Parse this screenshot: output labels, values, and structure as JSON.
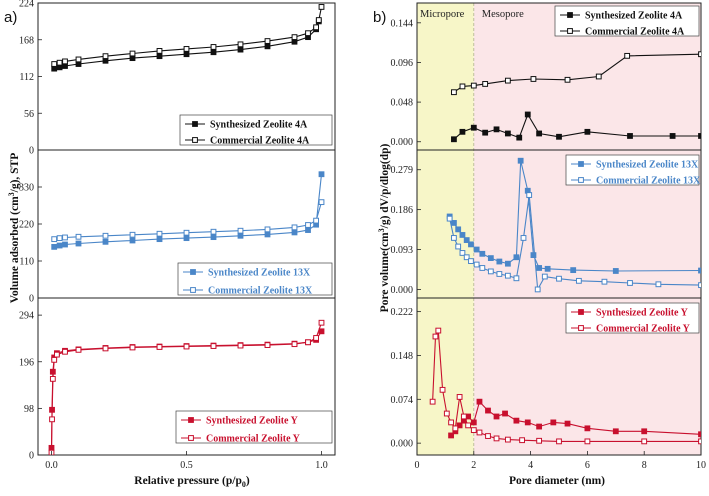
{
  "panel_labels": {
    "a": "a)",
    "b": "b)"
  },
  "colors": {
    "black": "#111111",
    "blue": "#4a86c8",
    "red": "#c8102e",
    "micro_bg": "#f7f6c8",
    "meso_bg": "#fbe6e8"
  },
  "chart_data": [
    {
      "type": "line",
      "panel": "a",
      "xlabel": "Relative pressure (p/p0)",
      "xlabel_main": "Relative pressure (p/p",
      "xlabel_sub": "0",
      "xlabel_end": ")",
      "ylabel": "Volume adsorbed (cm3/g), STP",
      "ylabel_main": "Volume adsorbed (cm",
      "ylabel_sup": "3",
      "ylabel_end": "/g), STP",
      "xlim": [
        -0.05,
        1.05
      ],
      "xticks": [
        0.0,
        0.5,
        1.0
      ],
      "xtick_labels": [
        "0.0",
        "0.5",
        "1.0"
      ],
      "subplots": [
        {
          "name": "4A",
          "ylim": [
            0,
            224
          ],
          "yticks": [
            0,
            56,
            112,
            168,
            224
          ],
          "ytick_labels": [
            "0",
            "56",
            "112",
            "168",
            "224"
          ],
          "color": "#111111",
          "series": [
            {
              "name": "Synthesized Zeolite 4A",
              "marker": "filled",
              "x": [
                0.01,
                0.03,
                0.05,
                0.1,
                0.2,
                0.3,
                0.4,
                0.5,
                0.6,
                0.7,
                0.8,
                0.9,
                0.95,
                0.98,
                0.99
              ],
              "y": [
                124,
                126,
                128,
                131,
                136,
                140,
                143,
                146,
                149,
                153,
                158,
                165,
                172,
                184,
                196
              ]
            },
            {
              "name": "Commercial Zeolite 4A",
              "marker": "open",
              "x": [
                0.01,
                0.03,
                0.05,
                0.1,
                0.2,
                0.3,
                0.4,
                0.5,
                0.6,
                0.7,
                0.8,
                0.9,
                0.95,
                0.98,
                0.99,
                1.0
              ],
              "y": [
                131,
                133,
                135,
                138,
                143,
                147,
                151,
                154,
                157,
                161,
                166,
                172,
                178,
                187,
                198,
                218
              ]
            }
          ]
        },
        {
          "name": "13X",
          "ylim": [
            0,
            440
          ],
          "yticks": [
            0,
            110,
            220,
            330
          ],
          "ytick_labels": [
            "0",
            "110",
            "220",
            "330"
          ],
          "color": "#4a86c8",
          "series": [
            {
              "name": "Synthesized Zeolite 13X",
              "marker": "filled",
              "x": [
                0.01,
                0.03,
                0.05,
                0.1,
                0.2,
                0.3,
                0.4,
                0.5,
                0.6,
                0.7,
                0.8,
                0.9,
                0.95,
                0.98,
                1.0
              ],
              "y": [
                152,
                156,
                159,
                162,
                167,
                171,
                175,
                178,
                181,
                185,
                189,
                195,
                202,
                218,
                368
              ]
            },
            {
              "name": "Commercial Zeolite 13X",
              "marker": "open",
              "x": [
                0.01,
                0.03,
                0.05,
                0.1,
                0.2,
                0.3,
                0.4,
                0.5,
                0.6,
                0.7,
                0.8,
                0.9,
                0.95,
                0.98,
                1.0
              ],
              "y": [
                175,
                178,
                180,
                182,
                185,
                188,
                191,
                194,
                197,
                200,
                204,
                210,
                217,
                230,
                285
              ]
            }
          ]
        },
        {
          "name": "Y",
          "ylim": [
            0,
            330
          ],
          "yticks": [
            0,
            98,
            196,
            294
          ],
          "ytick_labels": [
            "0",
            "98",
            "196",
            "294"
          ],
          "color": "#c8102e",
          "series": [
            {
              "name": "Synthesized Zeolite Y",
              "marker": "filled",
              "x": [
                0.0,
                0.002,
                0.005,
                0.01,
                0.02,
                0.05,
                0.1,
                0.2,
                0.3,
                0.4,
                0.5,
                0.6,
                0.7,
                0.8,
                0.9,
                0.95,
                0.98,
                1.0
              ],
              "y": [
                15,
                95,
                175,
                205,
                214,
                219,
                222,
                225,
                227,
                228,
                229,
                230,
                231,
                232,
                234,
                237,
                242,
                260
              ]
            },
            {
              "name": "Commercial Zeolite Y",
              "marker": "open",
              "x": [
                0.0,
                0.002,
                0.005,
                0.01,
                0.02,
                0.05,
                0.1,
                0.2,
                0.3,
                0.4,
                0.5,
                0.6,
                0.7,
                0.8,
                0.9,
                0.95,
                0.98,
                1.0
              ],
              "y": [
                5,
                75,
                160,
                200,
                211,
                217,
                221,
                224,
                226,
                227,
                228,
                229,
                230,
                231,
                233,
                237,
                246,
                278
              ]
            }
          ]
        }
      ]
    },
    {
      "type": "line",
      "panel": "b",
      "xlabel": "Pore diameter (nm)",
      "ylabel": "Pore volume(cm3/g) dV/p/dlog(dp)",
      "ylabel_main": "Pore volume(cm",
      "ylabel_sup": "3",
      "ylabel_end": "/g) dV/p/dlog(dp)",
      "xlim": [
        0,
        10
      ],
      "xticks": [
        0,
        2,
        4,
        6,
        8,
        10
      ],
      "xtick_labels": [
        "0",
        "2",
        "4",
        "6",
        "8",
        "10"
      ],
      "regions": [
        {
          "label": "Micropore",
          "x": [
            0,
            2
          ]
        },
        {
          "label": "Mesopore",
          "x": [
            2,
            10
          ]
        }
      ],
      "subplots": [
        {
          "name": "4A",
          "ylim": [
            -0.01,
            0.168
          ],
          "yticks": [
            0.0,
            0.048,
            0.096,
            0.144
          ],
          "ytick_labels": [
            "0.000",
            "0.048",
            "0.096",
            "0.144"
          ],
          "color": "#111111",
          "series": [
            {
              "name": "Synthesized Zeolite 4A",
              "marker": "filled",
              "x": [
                1.3,
                1.6,
                2.0,
                2.4,
                2.8,
                3.2,
                3.6,
                3.9,
                4.3,
                5.0,
                6.0,
                7.5,
                9.0,
                10.0
              ],
              "y": [
                0.003,
                0.012,
                0.017,
                0.011,
                0.015,
                0.01,
                0.005,
                0.033,
                0.01,
                0.006,
                0.012,
                0.007,
                0.007,
                0.007
              ]
            },
            {
              "name": "Commercial  Zeolite 4A",
              "marker": "open",
              "x": [
                1.3,
                1.6,
                2.0,
                2.4,
                3.2,
                4.1,
                5.3,
                6.4,
                7.4,
                10.0
              ],
              "y": [
                0.06,
                0.067,
                0.068,
                0.07,
                0.074,
                0.076,
                0.075,
                0.079,
                0.104,
                0.106
              ]
            }
          ]
        },
        {
          "name": "13X",
          "ylim": [
            -0.02,
            0.325
          ],
          "yticks": [
            0.0,
            0.093,
            0.186,
            0.279
          ],
          "ytick_labels": [
            "0.000",
            "0.093",
            "0.186",
            "0.279"
          ],
          "color": "#4a86c8",
          "series": [
            {
              "name": "Synthesized Zeolite 13X",
              "marker": "filled",
              "x": [
                1.15,
                1.3,
                1.45,
                1.6,
                1.75,
                1.9,
                2.1,
                2.3,
                2.6,
                2.9,
                3.2,
                3.5,
                3.65,
                3.9,
                4.1,
                4.3,
                4.6,
                5.5,
                7.0,
                10.0
              ],
              "y": [
                0.17,
                0.155,
                0.14,
                0.127,
                0.115,
                0.105,
                0.093,
                0.083,
                0.073,
                0.065,
                0.06,
                0.075,
                0.3,
                0.23,
                0.08,
                0.05,
                0.048,
                0.045,
                0.043,
                0.044
              ]
            },
            {
              "name": "Commercial  Zeolite 13X",
              "marker": "open",
              "x": [
                1.15,
                1.3,
                1.45,
                1.6,
                1.75,
                1.9,
                2.1,
                2.3,
                2.6,
                2.9,
                3.2,
                3.5,
                3.75,
                3.95,
                4.25,
                4.5,
                5.0,
                5.7,
                6.6,
                7.5,
                8.5,
                10.0
              ],
              "y": [
                0.165,
                0.12,
                0.1,
                0.085,
                0.075,
                0.066,
                0.058,
                0.05,
                0.042,
                0.036,
                0.032,
                0.026,
                0.12,
                0.22,
                0.0,
                0.03,
                0.025,
                0.02,
                0.018,
                0.015,
                0.012,
                0.01
              ]
            }
          ]
        },
        {
          "name": "Y",
          "ylim": [
            -0.02,
            0.245
          ],
          "yticks": [
            0.0,
            0.074,
            0.148,
            0.222
          ],
          "ytick_labels": [
            "0.000",
            "0.074",
            "0.148",
            "0.222"
          ],
          "color": "#c8102e",
          "series": [
            {
              "name": "Synthesized Zeolite Y",
              "marker": "filled",
              "x": [
                1.2,
                1.35,
                1.5,
                1.65,
                1.8,
                2.0,
                2.2,
                2.5,
                2.8,
                3.1,
                3.5,
                3.9,
                4.3,
                4.8,
                5.3,
                6.0,
                7.0,
                8.0,
                10.0
              ],
              "y": [
                0.013,
                0.02,
                0.03,
                0.038,
                0.045,
                0.035,
                0.07,
                0.055,
                0.045,
                0.05,
                0.038,
                0.035,
                0.028,
                0.035,
                0.033,
                0.025,
                0.02,
                0.02,
                0.015
              ]
            },
            {
              "name": "Commercial Zeolite Y",
              "marker": "open",
              "x": [
                0.55,
                0.65,
                0.75,
                0.9,
                1.05,
                1.2,
                1.35,
                1.5,
                1.65,
                1.8,
                2.0,
                2.2,
                2.5,
                2.8,
                3.2,
                3.7,
                4.3,
                5.0,
                6.0,
                8.0,
                10.0
              ],
              "y": [
                0.07,
                0.18,
                0.19,
                0.09,
                0.05,
                0.035,
                0.025,
                0.078,
                0.045,
                0.03,
                0.022,
                0.018,
                0.012,
                0.008,
                0.006,
                0.005,
                0.004,
                0.003,
                0.003,
                0.003,
                0.003
              ]
            }
          ]
        }
      ]
    }
  ]
}
